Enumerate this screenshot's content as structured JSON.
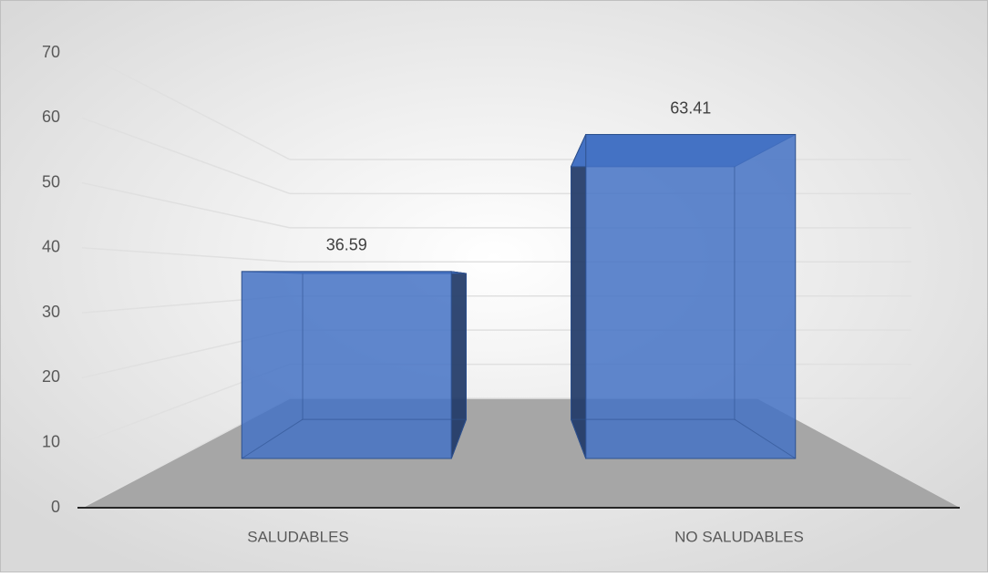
{
  "chart_data": {
    "type": "bar3d",
    "categories": [
      "SALUDABLES",
      "NO SALUDABLES"
    ],
    "values": [
      36.59,
      63.41
    ],
    "value_labels": [
      "36.59",
      "63.41"
    ],
    "color": "#4472c4",
    "ylim": [
      0,
      70
    ],
    "yticks": [
      0,
      10,
      20,
      30,
      40,
      50,
      60,
      70
    ],
    "grid": true
  }
}
